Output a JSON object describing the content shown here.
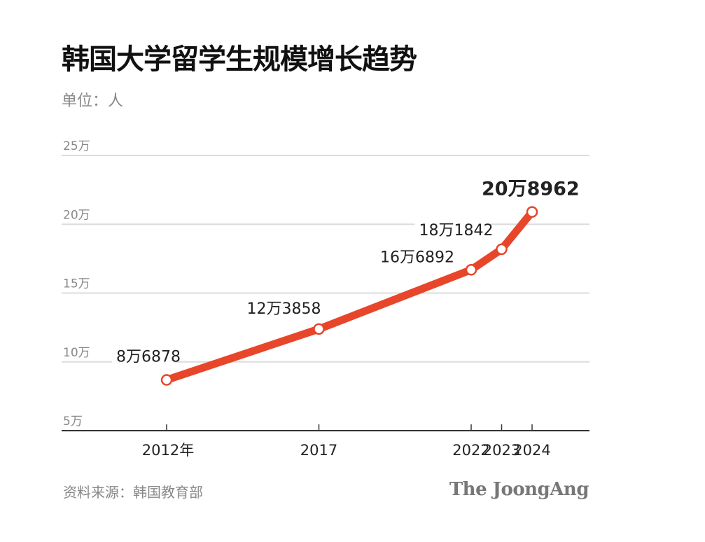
{
  "header": {
    "title": "韩国大学留学生规模增长趋势",
    "unit": "单位：人"
  },
  "footer": {
    "source": "资料来源：韩国教育部",
    "brand": "The JoongAng"
  },
  "colors": {
    "line": "#e8462a",
    "grid": "#dcdcdc",
    "axis": "#333333"
  },
  "chart_data": {
    "type": "line",
    "title": "韩国大学留学生规模增长趋势",
    "ylabel": "单位：人",
    "xlabel": "",
    "categories": [
      "2012年",
      "2017",
      "2022",
      "2023",
      "2024"
    ],
    "x": [
      2012,
      2017,
      2022,
      2023,
      2024
    ],
    "values": [
      86878,
      123858,
      166892,
      181842,
      208962
    ],
    "data_labels": [
      "8万6878",
      "12万3858",
      "16万6892",
      "18万1842",
      "20万8962"
    ],
    "yticks": [
      "5万",
      "10万",
      "15万",
      "20万",
      "25万"
    ],
    "ylim": [
      50000,
      250000
    ],
    "grid": true,
    "legend": "none",
    "source": "资料来源：韩国教育部"
  }
}
